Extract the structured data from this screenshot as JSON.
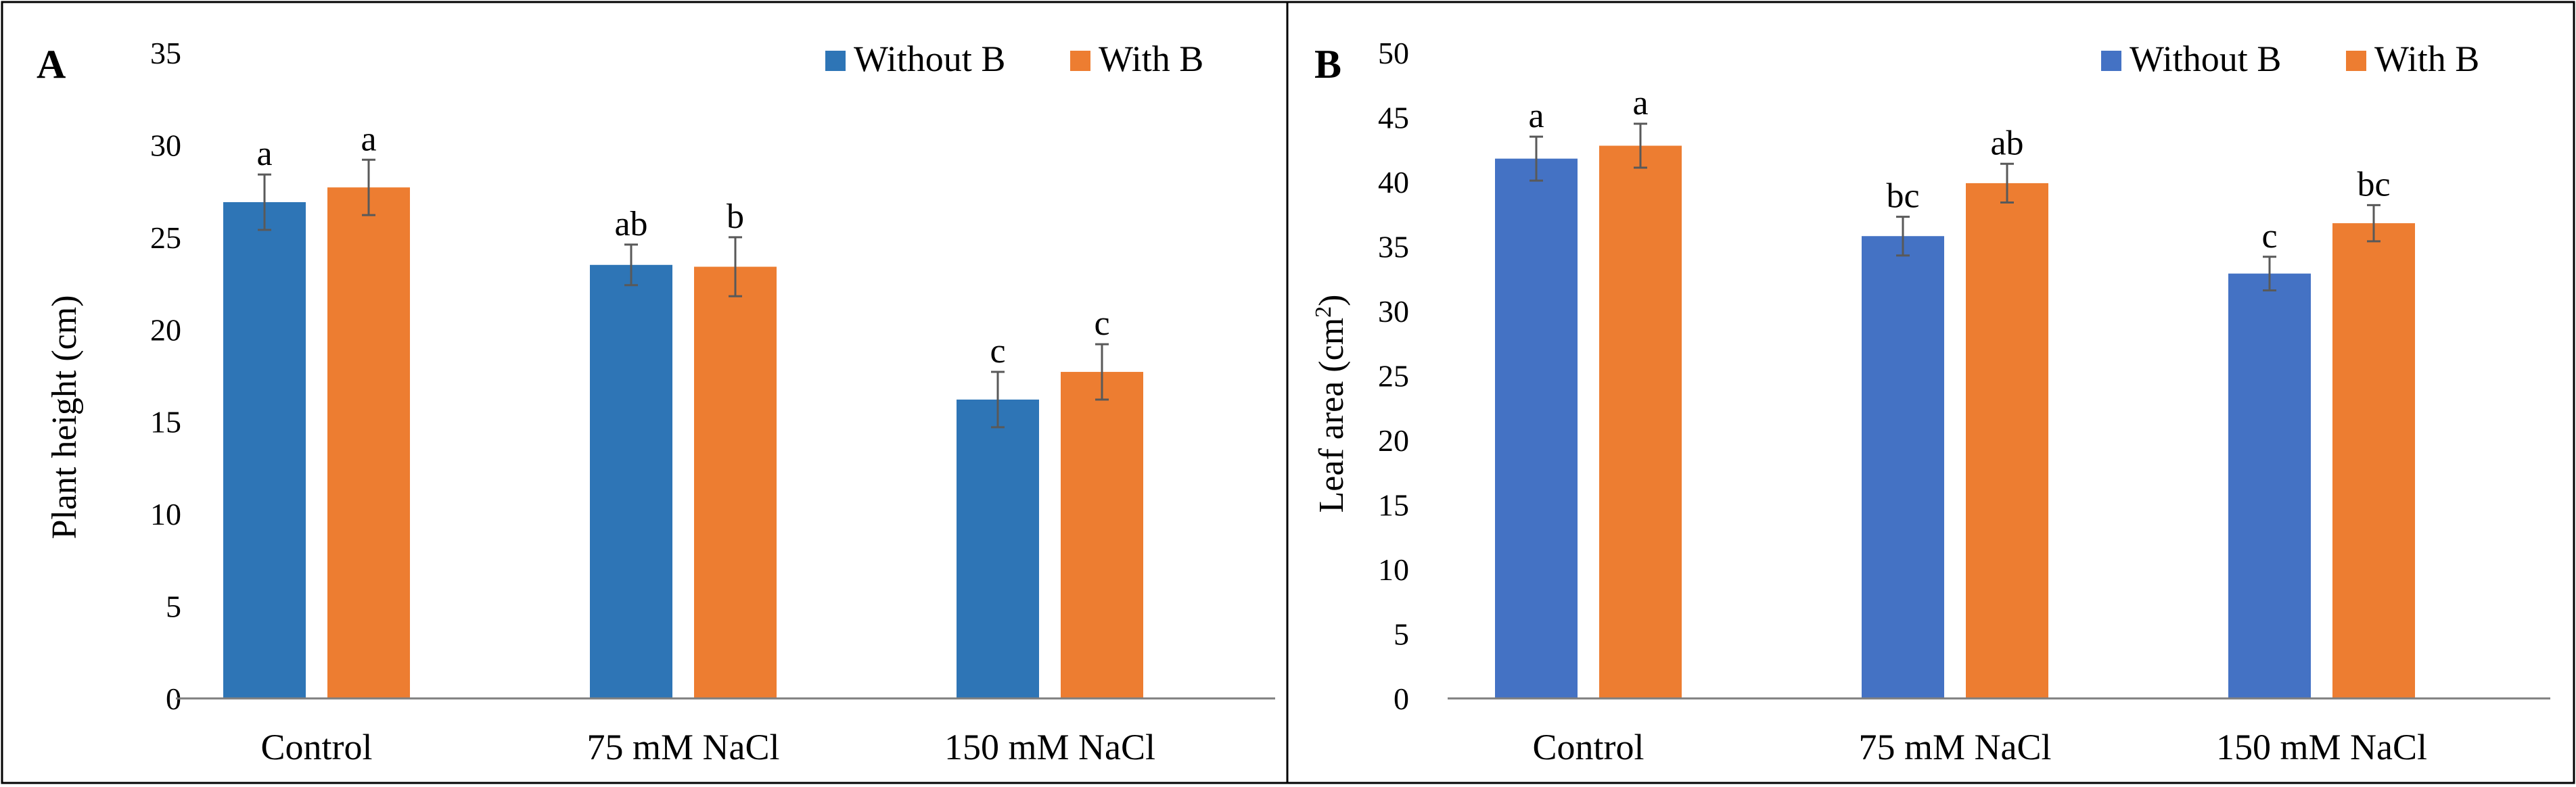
{
  "figure": {
    "colors": {
      "without_A": "#2e75b6",
      "without_B": "#4472c4",
      "with_B": "#ed7d31",
      "errorbar": "#595959",
      "axis": "#7f7f7f"
    }
  },
  "chart_data": [
    {
      "type": "bar",
      "panel": "A",
      "categories": [
        "Control",
        "75 mM NaCl",
        "150 mM NaCl"
      ],
      "series": [
        {
          "name": "Without B",
          "values": [
            26.9,
            23.5,
            16.2
          ],
          "errors": [
            1.5,
            1.1,
            1.5
          ],
          "labels": [
            "a",
            "ab",
            "c"
          ]
        },
        {
          "name": "With B",
          "values": [
            27.7,
            23.4,
            17.7
          ],
          "errors": [
            1.5,
            1.6,
            1.5
          ],
          "labels": [
            "a",
            "b",
            "c"
          ]
        }
      ],
      "title": "",
      "xlabel": "",
      "ylabel": "Plant height (cm)",
      "ylim": [
        0,
        35
      ],
      "yticks": [
        0,
        5,
        10,
        15,
        20,
        25,
        30,
        35
      ],
      "legend": "top-right",
      "grid": false
    },
    {
      "type": "bar",
      "panel": "B",
      "categories": [
        "Control",
        "75 mM NaCl",
        "150 mM NaCl"
      ],
      "series": [
        {
          "name": "Without B",
          "values": [
            41.8,
            35.8,
            32.9
          ],
          "errors": [
            1.7,
            1.5,
            1.3
          ],
          "labels": [
            "a",
            "bc",
            "c"
          ]
        },
        {
          "name": "With B",
          "values": [
            42.8,
            39.9,
            36.8
          ],
          "errors": [
            1.7,
            1.5,
            1.4
          ],
          "labels": [
            "a",
            "ab",
            "bc"
          ]
        }
      ],
      "title": "",
      "xlabel": "",
      "ylabel_main": "Leaf area (cm",
      "ylabel_sup": "2",
      "ylabel_end": ")",
      "ylim": [
        0,
        50
      ],
      "yticks": [
        0,
        5,
        10,
        15,
        20,
        25,
        30,
        35,
        40,
        45,
        50
      ],
      "legend": "top-right",
      "grid": false
    }
  ]
}
